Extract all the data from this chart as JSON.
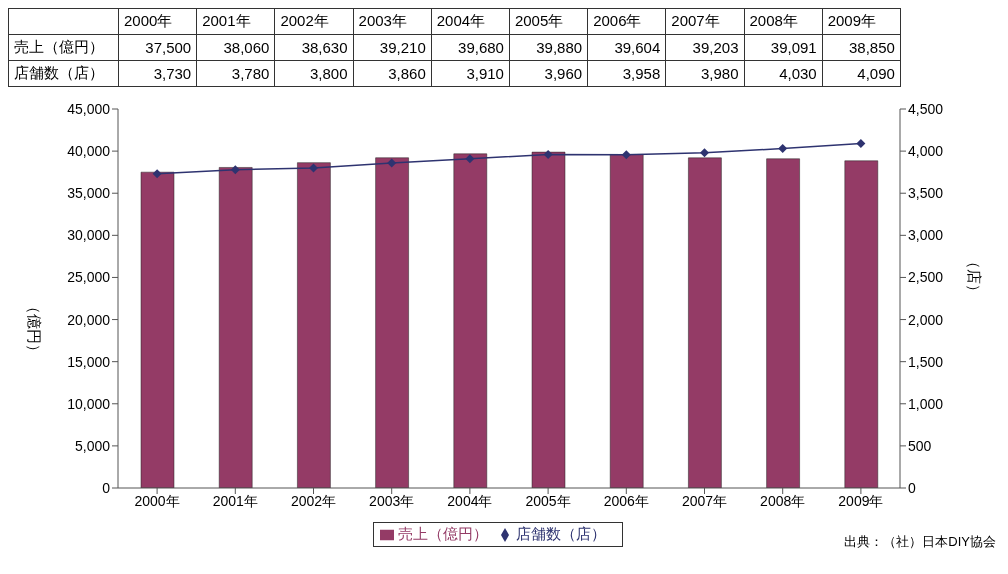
{
  "chart_data": {
    "type": "bar",
    "categories": [
      "2000年",
      "2001年",
      "2002年",
      "2003年",
      "2004年",
      "2005年",
      "2006年",
      "2007年",
      "2008年",
      "2009年"
    ],
    "series": [
      {
        "name": "売上（億円）",
        "color": "#943b66",
        "values": [
          37500,
          38060,
          38630,
          39210,
          39680,
          39880,
          39604,
          39203,
          39091,
          38850
        ],
        "value_labels": [
          "37,500",
          "38,060",
          "38,630",
          "39,210",
          "39,680",
          "39,880",
          "39,604",
          "39,203",
          "39,091",
          "38,850"
        ]
      },
      {
        "name": "店舗数（店）",
        "type": "line",
        "axis": "y2",
        "color": "#2e3370",
        "marker": "diamond",
        "line_style": "solid",
        "values": [
          3730,
          3780,
          3800,
          3860,
          3910,
          3960,
          3958,
          3980,
          4030,
          4090
        ],
        "value_labels": [
          "3,730",
          "3,780",
          "3,800",
          "3,860",
          "3,910",
          "3,960",
          "3,958",
          "3,980",
          "4,030",
          "4,090"
        ]
      }
    ],
    "ylabel": "（億円）",
    "y2label": "（店）",
    "ylim": [
      0,
      45000
    ],
    "yticks": [
      0,
      {
        "value": 5000,
        "label": "5,000"
      },
      {
        "value": 10000,
        "label": "10,000"
      },
      {
        "value": 15000,
        "label": "15,000"
      },
      {
        "value": 20000,
        "label": "20,000"
      },
      {
        "value": 25000,
        "label": "25,000"
      },
      {
        "value": 30000,
        "label": "30,000"
      },
      {
        "value": 35000,
        "label": "35,000"
      },
      {
        "value": 40000,
        "label": "40,000"
      },
      {
        "value": 45000,
        "label": "45,000"
      }
    ],
    "y2lim": [
      0,
      4500
    ],
    "y2ticks": [
      0,
      500,
      {
        "value": 1000,
        "label": "1,000"
      },
      {
        "value": 1500,
        "label": "1,500"
      },
      {
        "value": 2000,
        "label": "2,000"
      },
      {
        "value": 2500,
        "label": "2,500"
      },
      {
        "value": 3000,
        "label": "3,000"
      },
      {
        "value": 3500,
        "label": "3,500"
      },
      {
        "value": 4000,
        "label": "4,000"
      },
      {
        "value": 4500,
        "label": "4,500"
      }
    ],
    "legend": "bottom",
    "annotations": [
      "出典：（社）日本DIY協会"
    ]
  }
}
